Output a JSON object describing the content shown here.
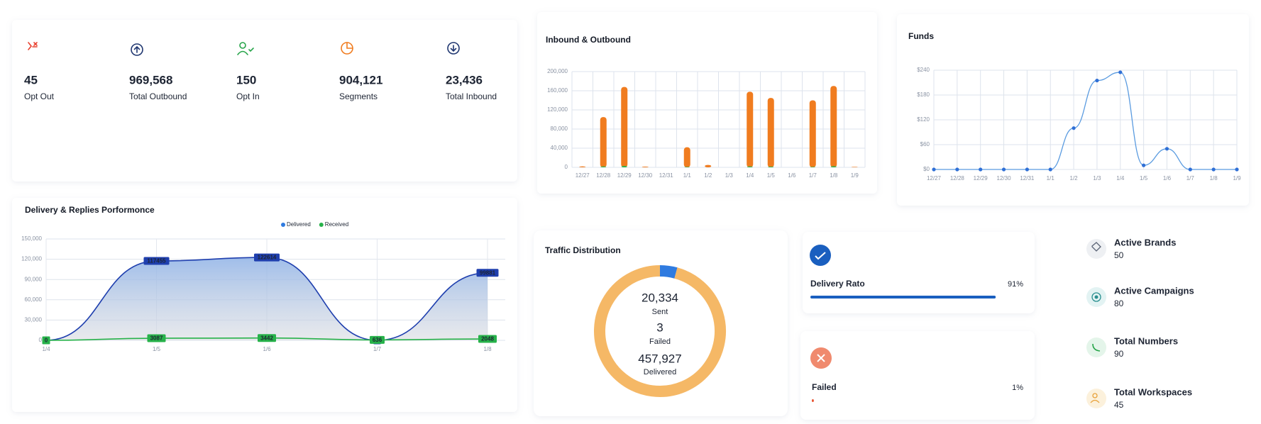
{
  "stats": [
    {
      "value": "45",
      "label": "Opt Out"
    },
    {
      "value": "969,568",
      "label": "Total Outbound"
    },
    {
      "value": "150",
      "label": "Opt In"
    },
    {
      "value": "904,121",
      "label": "Segments"
    },
    {
      "value": "23,436",
      "label": "Total Inbound"
    }
  ],
  "chart_data": [
    {
      "type": "bar",
      "title": "Inbound & Outbound",
      "categories": [
        "12/27",
        "12/28",
        "12/29",
        "12/30",
        "12/31",
        "1/1",
        "1/2",
        "1/3",
        "1/4",
        "1/5",
        "1/6",
        "1/7",
        "1/8",
        "1/9"
      ],
      "series": [
        {
          "color": "#f07c1f",
          "values": [
            2000,
            105000,
            168000,
            1500,
            0,
            42000,
            5000,
            0,
            158000,
            145000,
            0,
            140000,
            170000,
            1000
          ]
        },
        {
          "color": "#2fb34a",
          "values": [
            0,
            2000,
            3000,
            0,
            0,
            1000,
            0,
            0,
            2000,
            1500,
            0,
            1000,
            2500,
            0
          ]
        }
      ],
      "ylim": [
        0,
        200000
      ],
      "yticks": [
        0,
        {
          "value": 40000,
          "label": "40,000"
        },
        {
          "value": 80000,
          "label": "80,000"
        },
        {
          "value": 120000,
          "label": "120,000"
        },
        {
          "value": 160000,
          "label": "160,000"
        },
        {
          "value": 200000,
          "label": "200,000"
        }
      ],
      "grid": true
    },
    {
      "type": "line",
      "title": "Funds",
      "categories": [
        "12/27",
        "12/28",
        "12/29",
        "12/30",
        "12/31",
        "1/1",
        "1/2",
        "1/3",
        "1/4",
        "1/5",
        "1/6",
        "1/7",
        "1/8",
        "1/9"
      ],
      "series": [
        {
          "color": "#5a9be0",
          "values": [
            0,
            0,
            0,
            0,
            0,
            0,
            100,
            215,
            235,
            10,
            50,
            0,
            0,
            0
          ]
        }
      ],
      "ylim": [
        0,
        240
      ],
      "yticks": [
        {
          "value": 0,
          "label": "$0"
        },
        {
          "value": 60,
          "label": "$60"
        },
        {
          "value": 120,
          "label": "$120"
        },
        {
          "value": 180,
          "label": "$180"
        },
        {
          "value": 240,
          "label": "$240"
        }
      ],
      "grid": true
    },
    {
      "type": "area",
      "title": "Delivery & Replies Porformonce",
      "categories": [
        "1/4",
        "1/5",
        "1/6",
        "1/7",
        "1/8"
      ],
      "series": [
        {
          "name": "Delivered",
          "color": "#1f3fae",
          "values": [
            0,
            117455,
            122614,
            0,
            99881
          ]
        },
        {
          "name": "Received",
          "color": "#27b24a",
          "values": [
            0,
            3087,
            3442,
            636,
            2048
          ]
        }
      ],
      "ylim": [
        0,
        150000
      ],
      "yticks": [
        0,
        {
          "value": 30000,
          "label": "30,000"
        },
        {
          "value": 60000,
          "label": "60,000"
        },
        {
          "value": 90000,
          "label": "90,000"
        },
        {
          "value": 120000,
          "label": "120,000"
        },
        {
          "value": 150000,
          "label": "150,000"
        }
      ],
      "legend": "top",
      "grid": true
    },
    {
      "type": "donut",
      "title": "Traffic Distribution",
      "categories": [
        "Sent",
        "Failed",
        "Delivered"
      ],
      "values": [
        20334,
        3,
        457927
      ],
      "value_labels": [
        "20,334",
        "3",
        "457,927"
      ],
      "colors": [
        "#2f7be0",
        "#e8522f",
        "#f5b866"
      ]
    }
  ],
  "rates": [
    {
      "label": "Delivery Rato",
      "value": 91,
      "value_label": "91%",
      "color": "#1a5fbf"
    },
    {
      "label": "Failed",
      "value": 1,
      "value_label": "1%",
      "color": "#e8522f"
    }
  ],
  "summary": [
    {
      "label": "Active Brands",
      "value": "50"
    },
    {
      "label": "Active Campaigns",
      "value": "80"
    },
    {
      "label": "Total Numbers",
      "value": "90"
    },
    {
      "label": "Total Workspaces",
      "value": "45"
    }
  ]
}
